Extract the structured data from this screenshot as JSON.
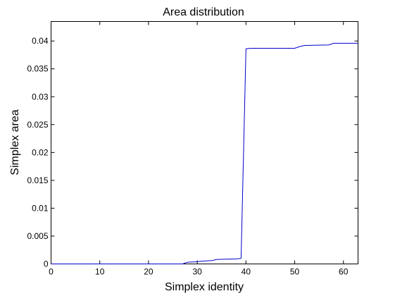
{
  "chart_data": {
    "type": "line",
    "title": "Area distribution",
    "xlabel": "Simplex identity",
    "ylabel": "Simplex area",
    "xlim": [
      0,
      63
    ],
    "ylim": [
      0,
      0.0435
    ],
    "xticks": [
      0,
      10,
      20,
      30,
      40,
      50,
      60
    ],
    "yticks": [
      0,
      0.005,
      0.01,
      0.015,
      0.02,
      0.025,
      0.03,
      0.035,
      0.04
    ],
    "ytick_labels": [
      "0",
      "0.005",
      "0.01",
      "0.015",
      "0.02",
      "0.025",
      "0.03",
      "0.035",
      "0.04"
    ],
    "grid": false,
    "series": [
      {
        "color": "#0000cc",
        "x": [
          0,
          27,
          28,
          30,
          31,
          33,
          34,
          38,
          39,
          40,
          41,
          50,
          51,
          52,
          57,
          58,
          63
        ],
        "y": [
          0,
          0,
          0.0003,
          0.0004,
          0.0005,
          0.0006,
          0.0008,
          0.0009,
          0.001,
          0.0386,
          0.0387,
          0.0387,
          0.039,
          0.0392,
          0.0393,
          0.0396,
          0.0396
        ]
      }
    ]
  }
}
